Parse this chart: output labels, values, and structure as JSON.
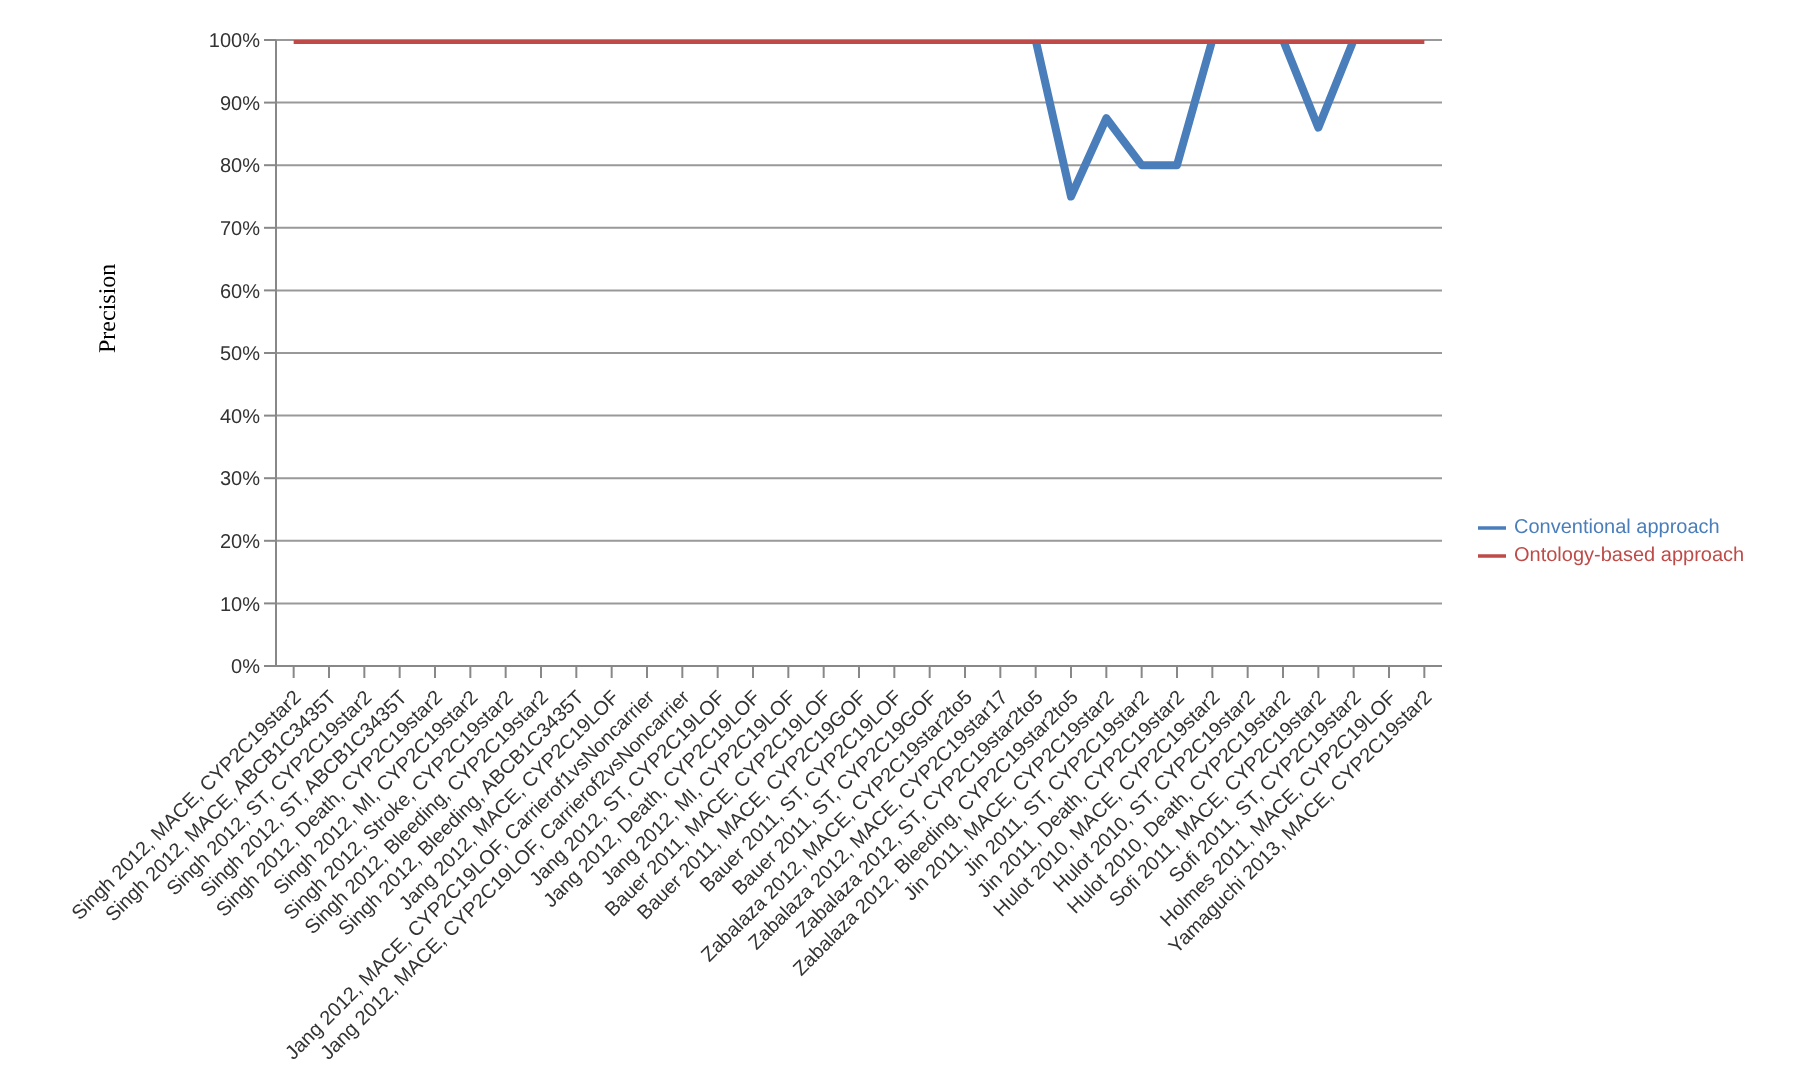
{
  "chart_data": {
    "type": "line",
    "ylabel": "Precision",
    "categories": [
      "Singh 2012, MACE, CYP2C19star2",
      "Singh 2012, MACE, ABCB1C3435T",
      "Singh 2012, ST, CYP2C19star2",
      "Singh 2012, ST,  ABCB1C3435T",
      "Singh 2012, Death, CYP2C19star2",
      "Singh 2012, MI, CYP2C19star2",
      "Singh 2012, Stroke, CYP2C19star2",
      "Singh 2012, Bleeding, CYP2C19star2",
      "Singh 2012, Bleeding, ABCB1C3435T",
      "Jang 2012, MACE, CYP2C19LOF",
      "Jang 2012, MACE, CYP2C19LOF, Carrierof1vsNoncarrier",
      "Jang 2012, MACE, CYP2C19LOF, Carrierof2vsNoncarrier",
      "Jang 2012, ST, CYP2C19LOF",
      "Jang 2012, Death, CYP2C19LOF",
      "Jang 2012, MI, CYP2C19LOF",
      "Bauer 2011, MACE, CYP2C19LOF",
      "Bauer 2011, MACE, CYP2C19GOF",
      "Bauer 2011, ST, CYP2C19LOF",
      "Bauer 2011, ST, CYP2C19GOF",
      "Zabalaza 2012, MACE, CYP2C19star2to5",
      "Zabalaza 2012, MACE, CYP2C19star17",
      "Zabalaza 2012, ST, CYP2C19star2to5",
      "Zabalaza 2012, Bleeding, CYP2C19star2to5",
      "Jin 2011, MACE, CYP2C19star2",
      "Jin 2011, ST, CYP2C19star2",
      "Jin 2011, Death, CYP2C19star2",
      "Hulot 2010, MACE, CYP2C19star2",
      "Hulot 2010, ST, CYP2C19star2",
      "Hulot 2010, Death, CYP2C19star2",
      "Sofi 2011, MACE, CYP2C19star2",
      "Sofi 2011, ST, CYP2C19star2",
      "Holmes 2011, MACE, CYP2C19LOF",
      "Yamaguchi 2013, MACE, CYP2C19star2"
    ],
    "series": [
      {
        "name": "Conventional approach",
        "color": "#4a7ebb",
        "values": [
          null,
          null,
          null,
          null,
          null,
          null,
          null,
          null,
          null,
          null,
          null,
          null,
          null,
          null,
          null,
          null,
          null,
          null,
          null,
          null,
          null,
          100,
          75,
          87.5,
          80,
          80,
          100,
          null,
          100,
          86,
          100,
          null,
          null
        ]
      },
      {
        "name": "Ontology-based approach",
        "color": "#be4b48",
        "values": [
          100,
          100,
          100,
          100,
          100,
          100,
          100,
          100,
          100,
          100,
          100,
          100,
          100,
          100,
          100,
          100,
          100,
          100,
          100,
          100,
          100,
          100,
          100,
          100,
          100,
          100,
          100,
          100,
          100,
          100,
          100,
          100,
          100
        ]
      }
    ],
    "ylim": [
      0,
      100
    ],
    "yticks": [
      {
        "value": 0,
        "label": "0%"
      },
      {
        "value": 10,
        "label": "10%"
      },
      {
        "value": 20,
        "label": "20%"
      },
      {
        "value": 30,
        "label": "30%"
      },
      {
        "value": 40,
        "label": "40%"
      },
      {
        "value": 50,
        "label": "50%"
      },
      {
        "value": 60,
        "label": "60%"
      },
      {
        "value": 70,
        "label": "70%"
      },
      {
        "value": 80,
        "label": "80%"
      },
      {
        "value": 90,
        "label": "90%"
      },
      {
        "value": 100,
        "label": "100%"
      }
    ],
    "grid": "y",
    "legend": "right",
    "marker": "none",
    "line_style": "solid"
  }
}
